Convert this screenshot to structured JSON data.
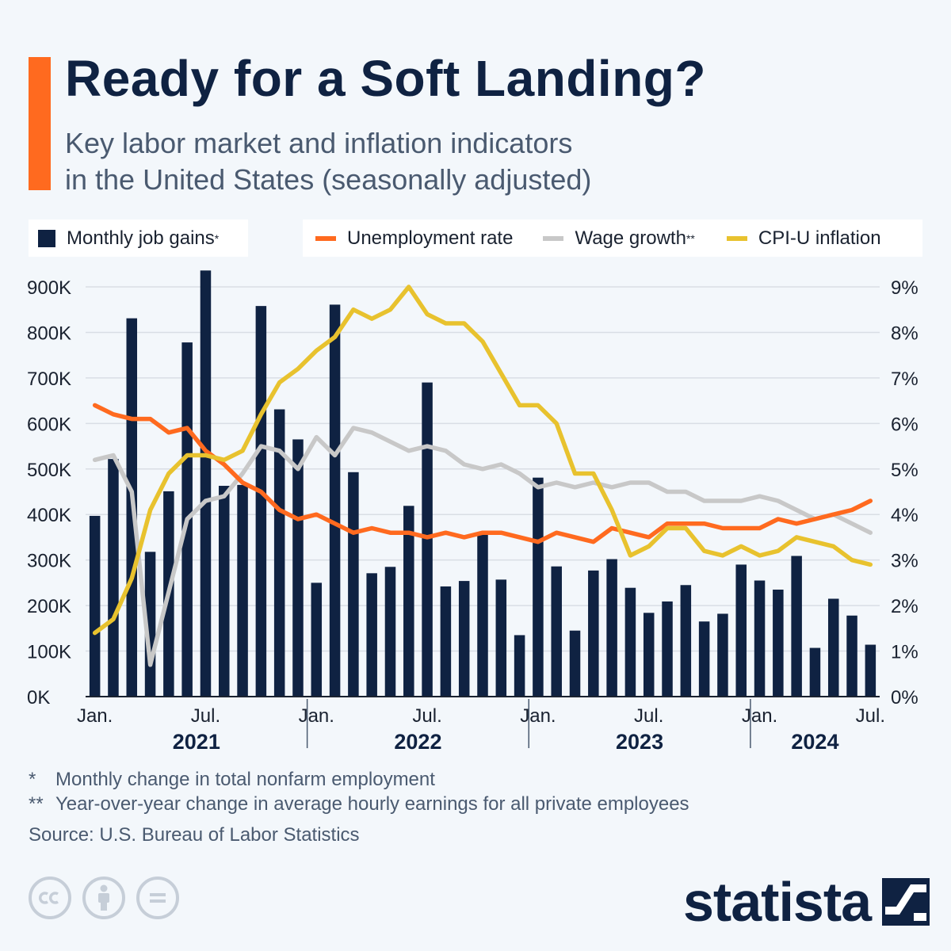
{
  "title": "Ready for a Soft Landing?",
  "subtitle_line1": "Key labor market and inflation indicators",
  "subtitle_line2": "in the United States (seasonally adjusted)",
  "legend": {
    "jobs": "Monthly job gains",
    "jobs_mark": "*",
    "unemployment": "Unemployment rate",
    "wage": "Wage growth",
    "wage_mark": "**",
    "cpi": "CPI-U inflation"
  },
  "notes": {
    "n1_mark": "*",
    "n1_text": "Monthly change in total nonfarm employment",
    "n2_mark": "**",
    "n2_text": "Year-over-year change in average hourly earnings for all private employees",
    "source": "Source: U.S. Bureau of Labor Statistics"
  },
  "brand": "statista",
  "icons": [
    "cc-icon",
    "attribution-icon",
    "no-derivatives-icon",
    "statista-logo-icon"
  ],
  "colors": {
    "navy": "#0f2242",
    "orange": "#ff6a1f",
    "gray": "#c8c8c8",
    "yellow": "#e8c22e",
    "accent": "#ff6a1f"
  },
  "chart_data": {
    "type": "bar",
    "x": [
      "2021-01",
      "2021-02",
      "2021-03",
      "2021-04",
      "2021-05",
      "2021-06",
      "2021-07",
      "2021-08",
      "2021-09",
      "2021-10",
      "2021-11",
      "2021-12",
      "2022-01",
      "2022-02",
      "2022-03",
      "2022-04",
      "2022-05",
      "2022-06",
      "2022-07",
      "2022-08",
      "2022-09",
      "2022-10",
      "2022-11",
      "2022-12",
      "2023-01",
      "2023-02",
      "2023-03",
      "2023-04",
      "2023-05",
      "2023-06",
      "2023-07",
      "2023-08",
      "2023-09",
      "2023-10",
      "2023-11",
      "2023-12",
      "2024-01",
      "2024-02",
      "2024-03",
      "2024-04",
      "2024-05",
      "2024-06",
      "2024-07"
    ],
    "x_tick_labels": [
      {
        "index": 0,
        "label": "Jan."
      },
      {
        "index": 6,
        "label": "Jul."
      },
      {
        "index": 12,
        "label": "Jan."
      },
      {
        "index": 18,
        "label": "Jul."
      },
      {
        "index": 24,
        "label": "Jan."
      },
      {
        "index": 30,
        "label": "Jul."
      },
      {
        "index": 36,
        "label": "Jan."
      },
      {
        "index": 42,
        "label": "Jul."
      }
    ],
    "year_labels": [
      {
        "label": "2021",
        "start": 0,
        "end": 11
      },
      {
        "label": "2022",
        "start": 12,
        "end": 23
      },
      {
        "label": "2023",
        "start": 24,
        "end": 35
      },
      {
        "label": "2024",
        "start": 36,
        "end": 42
      }
    ],
    "y_left": {
      "min": 0,
      "max": 900000,
      "ticks": [
        0,
        100000,
        200000,
        300000,
        400000,
        500000,
        600000,
        700000,
        800000,
        900000
      ],
      "tick_labels": [
        "0K",
        "100K",
        "200K",
        "300K",
        "400K",
        "500K",
        "600K",
        "700K",
        "800K",
        "900K"
      ]
    },
    "y_right": {
      "min": 0,
      "max": 9,
      "ticks": [
        0,
        1,
        2,
        3,
        4,
        5,
        6,
        7,
        8,
        9
      ],
      "tick_labels": [
        "0%",
        "1%",
        "2%",
        "3%",
        "4%",
        "5%",
        "6%",
        "7%",
        "8%",
        "9%"
      ]
    },
    "series": [
      {
        "name": "Monthly job gains",
        "kind": "bar",
        "axis": "left",
        "values": [
          397000,
          522000,
          831000,
          318000,
          451000,
          778000,
          936000,
          463000,
          465000,
          858000,
          631000,
          565000,
          250000,
          861000,
          493000,
          271000,
          285000,
          419000,
          690000,
          242000,
          254000,
          358000,
          257000,
          135000,
          481000,
          286000,
          145000,
          277000,
          302000,
          239000,
          184000,
          209000,
          245000,
          165000,
          182000,
          290000,
          255000,
          235000,
          309000,
          107000,
          215000,
          178000,
          114000
        ]
      },
      {
        "name": "Unemployment rate",
        "kind": "line",
        "axis": "right",
        "values": [
          6.4,
          6.2,
          6.1,
          6.1,
          5.8,
          5.9,
          5.4,
          5.1,
          4.7,
          4.5,
          4.1,
          3.9,
          4.0,
          3.8,
          3.6,
          3.7,
          3.6,
          3.6,
          3.5,
          3.6,
          3.5,
          3.6,
          3.6,
          3.5,
          3.4,
          3.6,
          3.5,
          3.4,
          3.7,
          3.6,
          3.5,
          3.8,
          3.8,
          3.8,
          3.7,
          3.7,
          3.7,
          3.9,
          3.8,
          3.9,
          4.0,
          4.1,
          4.3
        ]
      },
      {
        "name": "Wage growth",
        "kind": "line",
        "axis": "right",
        "values": [
          5.2,
          5.3,
          4.5,
          0.7,
          2.3,
          3.9,
          4.3,
          4.4,
          4.9,
          5.5,
          5.4,
          5.0,
          5.7,
          5.3,
          5.9,
          5.8,
          5.6,
          5.4,
          5.5,
          5.4,
          5.1,
          5.0,
          5.1,
          4.9,
          4.6,
          4.7,
          4.6,
          4.7,
          4.6,
          4.7,
          4.7,
          4.5,
          4.5,
          4.3,
          4.3,
          4.3,
          4.4,
          4.3,
          4.1,
          3.9,
          4.0,
          3.8,
          3.6
        ]
      },
      {
        "name": "CPI-U inflation",
        "kind": "line",
        "axis": "right",
        "values": [
          1.4,
          1.7,
          2.6,
          4.1,
          4.9,
          5.3,
          5.3,
          5.2,
          5.4,
          6.2,
          6.9,
          7.2,
          7.6,
          7.9,
          8.5,
          8.3,
          8.5,
          9.0,
          8.4,
          8.2,
          8.2,
          7.8,
          7.1,
          6.4,
          6.4,
          6.0,
          4.9,
          4.9,
          4.1,
          3.1,
          3.3,
          3.7,
          3.7,
          3.2,
          3.1,
          3.3,
          3.1,
          3.2,
          3.5,
          3.4,
          3.3,
          3.0,
          2.9
        ]
      }
    ],
    "grid": "horizontal",
    "legend_position": "top"
  }
}
